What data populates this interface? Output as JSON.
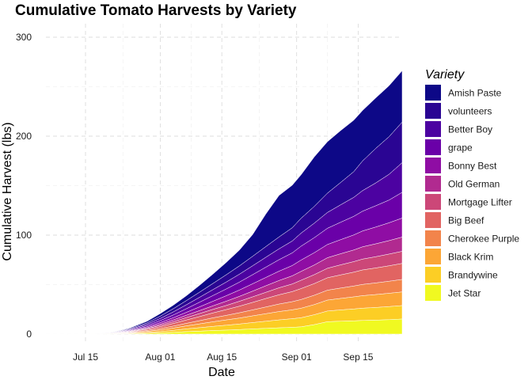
{
  "chart_data": {
    "type": "area",
    "stacked": true,
    "title": "Cumulative Tomato Harvests by Variety",
    "xlabel": "Date",
    "ylabel": "Cumulative Harvest (lbs)",
    "x_axis": {
      "start_date": "2020-07-06",
      "end_date": "2020-09-25",
      "tick_labels": [
        "Jul 15",
        "Aug 01",
        "Aug 15",
        "Sep 01",
        "Sep 15"
      ],
      "tick_dates": [
        "2020-07-15",
        "2020-08-01",
        "2020-08-15",
        "2020-09-01",
        "2020-09-15"
      ]
    },
    "y_axis": {
      "ylim": [
        0,
        300
      ],
      "ticks": [
        0,
        100,
        200,
        300
      ]
    },
    "grid": true,
    "legend": {
      "title": "Variety",
      "position": "right"
    },
    "x": [
      "2020-07-06",
      "2020-07-11",
      "2020-07-16",
      "2020-07-21",
      "2020-07-25",
      "2020-07-29",
      "2020-08-01",
      "2020-08-04",
      "2020-08-07",
      "2020-08-10",
      "2020-08-13",
      "2020-08-16",
      "2020-08-19",
      "2020-08-22",
      "2020-08-25",
      "2020-08-28",
      "2020-08-31",
      "2020-09-02",
      "2020-09-05",
      "2020-09-08",
      "2020-09-11",
      "2020-09-14",
      "2020-09-16",
      "2020-09-19",
      "2020-09-22",
      "2020-09-25"
    ],
    "series": [
      {
        "name": "Jet Star",
        "color": "#f0f921",
        "values": [
          0,
          0,
          0,
          0.1,
          0.3,
          0.8,
          1.2,
          1.8,
          2.5,
          3.0,
          3.6,
          4.0,
          4.6,
          5.2,
          5.8,
          6.3,
          6.8,
          7.3,
          9.5,
          12.5,
          13.0,
          13.4,
          13.8,
          14.1,
          14.6,
          15.2
        ]
      },
      {
        "name": "Brandywine",
        "color": "#fcce25",
        "values": [
          0,
          0,
          0,
          0.1,
          0.4,
          0.9,
          1.4,
          2.0,
          2.8,
          3.5,
          4.2,
          5.0,
          5.6,
          6.4,
          7.2,
          8.0,
          8.7,
          9.2,
          10.0,
          10.8,
          11.4,
          12.0,
          12.4,
          12.8,
          13.2,
          13.6
        ]
      },
      {
        "name": "Black Krim",
        "color": "#fca636",
        "values": [
          0,
          0,
          0,
          0.1,
          0.4,
          1.0,
          1.6,
          2.3,
          3.0,
          3.8,
          4.6,
          5.3,
          6.0,
          6.8,
          7.6,
          8.4,
          9.0,
          9.6,
          10.3,
          11.0,
          11.6,
          12.2,
          12.6,
          13.0,
          13.4,
          13.8
        ]
      },
      {
        "name": "Cherokee Purple",
        "color": "#f2844b",
        "values": [
          0,
          0,
          0,
          0.1,
          0.4,
          0.9,
          1.4,
          2.0,
          2.6,
          3.3,
          4.0,
          4.6,
          5.3,
          6.0,
          6.8,
          7.6,
          8.2,
          8.8,
          9.4,
          10.0,
          10.5,
          11.0,
          11.4,
          11.8,
          12.2,
          12.6
        ]
      },
      {
        "name": "Big Beef",
        "color": "#e16462",
        "values": [
          0,
          0,
          0,
          0.1,
          0.5,
          1.1,
          1.8,
          2.6,
          3.4,
          4.2,
          5.0,
          5.8,
          6.7,
          7.6,
          8.5,
          9.4,
          10.2,
          11.0,
          11.8,
          12.6,
          13.3,
          14.0,
          14.6,
          15.1,
          15.6,
          16.2
        ]
      },
      {
        "name": "Mortgage Lifter",
        "color": "#cc4778",
        "values": [
          0,
          0,
          0,
          0.1,
          0.4,
          0.8,
          1.3,
          1.8,
          2.4,
          3.0,
          3.6,
          4.2,
          4.9,
          5.6,
          6.3,
          7.0,
          7.7,
          8.4,
          9.0,
          9.6,
          10.1,
          10.6,
          11.0,
          11.4,
          11.8,
          12.2
        ]
      },
      {
        "name": "Old German",
        "color": "#b12a90",
        "values": [
          0,
          0,
          0,
          0.1,
          0.4,
          0.8,
          1.3,
          1.8,
          2.4,
          3.0,
          3.6,
          4.3,
          5.0,
          5.8,
          6.6,
          7.4,
          8.2,
          9.0,
          9.8,
          10.6,
          11.2,
          11.8,
          12.4,
          13.0,
          13.6,
          14.4
        ]
      },
      {
        "name": "Bonny Best",
        "color": "#8f0da4",
        "values": [
          0,
          0,
          0,
          0.2,
          0.5,
          1.0,
          1.6,
          2.3,
          3.0,
          3.8,
          4.6,
          5.5,
          6.4,
          7.4,
          8.4,
          9.4,
          10.4,
          11.4,
          12.4,
          13.4,
          14.3,
          15.2,
          16.0,
          17.0,
          18.0,
          19.2
        ]
      },
      {
        "name": "grape",
        "color": "#6a00a8",
        "values": [
          0,
          0,
          0,
          0.2,
          0.6,
          1.3,
          2.0,
          2.8,
          3.7,
          4.7,
          5.8,
          6.9,
          8.0,
          9.2,
          10.4,
          11.6,
          12.8,
          14.0,
          15.2,
          16.4,
          17.6,
          18.8,
          20.0,
          21.5,
          23.0,
          26.0
        ]
      },
      {
        "name": "Better Boy",
        "color": "#4c02a1",
        "values": [
          0,
          0,
          0,
          0.2,
          0.7,
          1.4,
          2.2,
          3.1,
          4.0,
          5.0,
          6.0,
          7.0,
          8.0,
          9.0,
          10.0,
          11.0,
          12.0,
          13.2,
          14.6,
          16.0,
          17.6,
          19.2,
          20.8,
          23.0,
          26.0,
          30.0
        ]
      },
      {
        "name": "volunteers",
        "color": "#2a0593",
        "values": [
          0,
          0,
          0,
          0.2,
          0.7,
          1.4,
          2.3,
          3.2,
          4.2,
          5.2,
          6.2,
          7.3,
          8.4,
          9.6,
          10.8,
          12.0,
          13.4,
          15.0,
          17.0,
          19.5,
          22.5,
          26.0,
          30.0,
          35.0,
          38.0,
          41.0
        ]
      },
      {
        "name": "Amish Paste",
        "color": "#0d0887",
        "values": [
          0,
          0,
          0,
          0.2,
          0.7,
          1.6,
          2.6,
          3.6,
          5.0,
          7.0,
          9.5,
          12.5,
          16.0,
          22.0,
          33.0,
          42.0,
          43.0,
          44.0,
          50.0,
          52.0,
          52.5,
          52.0,
          51.0,
          51.0,
          51.5,
          52.0
        ]
      }
    ]
  }
}
